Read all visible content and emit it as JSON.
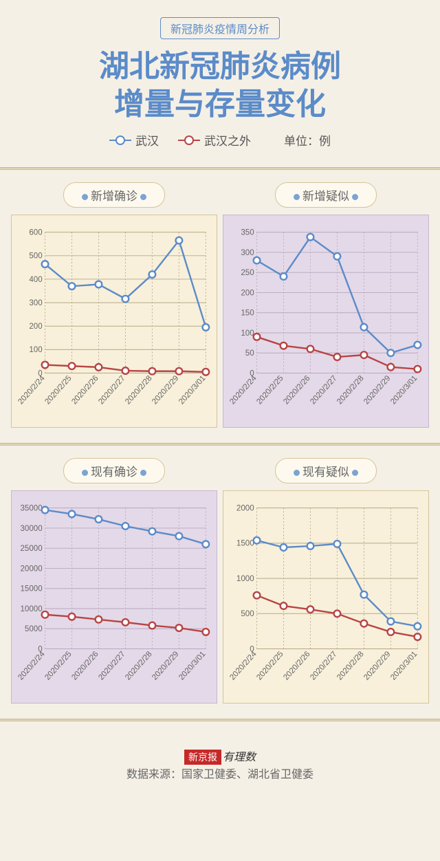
{
  "header": {
    "tag": "新冠肺炎疫情周分析",
    "title_l1": "湖北新冠肺炎病例",
    "title_l2": "增量与存量变化",
    "legend_a": "武汉",
    "legend_b": "武汉之外",
    "unit": "单位：例"
  },
  "colors": {
    "wuhan": "#5b8bc9",
    "outside": "#b84545",
    "bg_cream": "#f8f0da",
    "bg_lav": "#e4d9e8",
    "grid": "#b5a98a",
    "grid_lav": "#b8a8c0",
    "border_cream": "#d4c49a",
    "border_lav": "#c5b5d0",
    "badge_border": "#d4c49a",
    "badge_bg": "#fdf9ee",
    "dot_blue": "#7ba3d4",
    "dot_red": "#c97575"
  },
  "dates": [
    "2020/2/24",
    "2020/2/25",
    "2020/2/26",
    "2020/2/27",
    "2020/2/28",
    "2020/2/29",
    "2020/3/01"
  ],
  "charts": [
    {
      "title": "新增确诊",
      "bg": "cream",
      "ymin": 0,
      "ymax": 600,
      "ystep": 100,
      "wuhan": [
        464,
        370,
        378,
        316,
        420,
        565,
        195
      ],
      "outside": [
        35,
        30,
        25,
        10,
        8,
        8,
        5
      ]
    },
    {
      "title": "新增疑似",
      "bg": "lav",
      "ymin": 0,
      "ymax": 350,
      "ystep": 50,
      "wuhan": [
        280,
        240,
        338,
        290,
        114,
        50,
        70
      ],
      "outside": [
        90,
        68,
        60,
        40,
        45,
        15,
        10
      ]
    },
    {
      "title": "现有确诊",
      "bg": "lav",
      "ymin": 0,
      "ymax": 35000,
      "ystep": 5000,
      "wuhan": [
        34500,
        33500,
        32200,
        30500,
        29200,
        28000,
        26000
      ],
      "outside": [
        8500,
        8000,
        7300,
        6600,
        5800,
        5200,
        4200
      ]
    },
    {
      "title": "现有疑似",
      "bg": "cream",
      "ymin": 0,
      "ymax": 2000,
      "ystep": 500,
      "wuhan": [
        1540,
        1440,
        1460,
        1490,
        770,
        390,
        320
      ],
      "outside": [
        760,
        610,
        560,
        500,
        360,
        240,
        170
      ]
    }
  ],
  "footer": {
    "brand1": "新京报",
    "brand2": "有理数",
    "source": "数据来源：国家卫健委、湖北省卫健委"
  }
}
